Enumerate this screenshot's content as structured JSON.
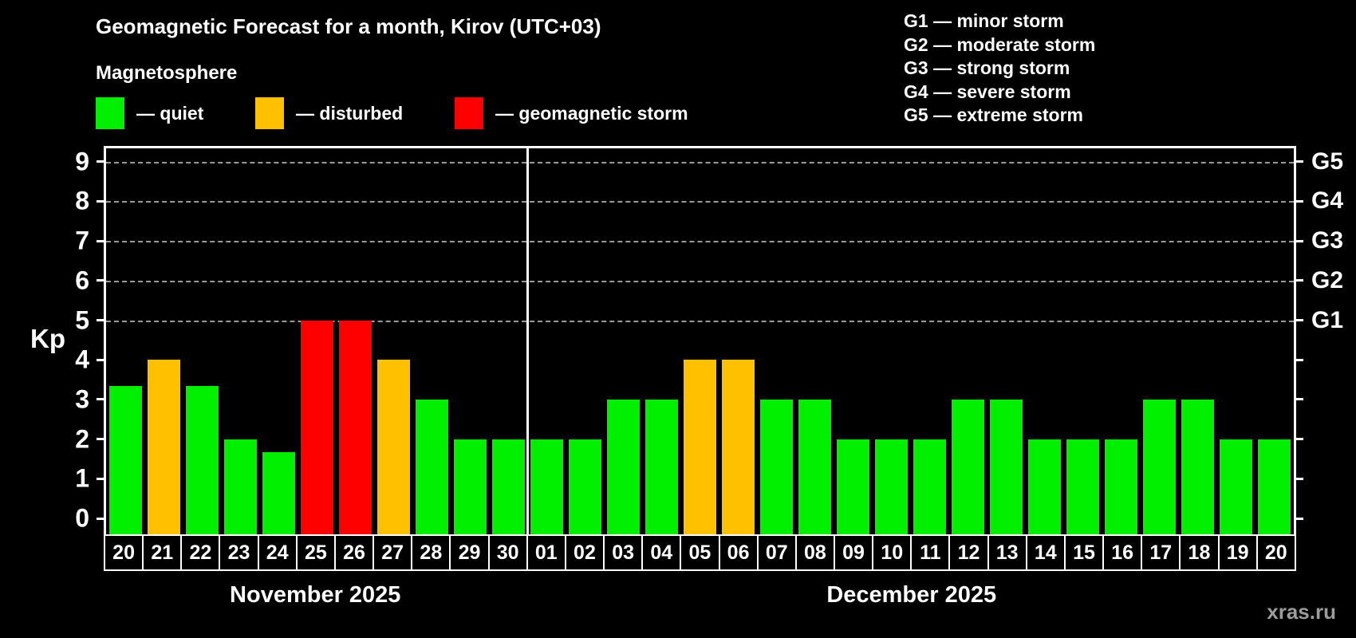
{
  "title": "Geomagnetic Forecast for a month, Kirov (UTC+03)",
  "subtitle": "Magnetosphere",
  "watermark": "xras.ru",
  "kp_legend": [
    {
      "status": "quiet",
      "label": "— quiet",
      "color": "#00f000"
    },
    {
      "status": "disturbed",
      "label": "— disturbed",
      "color": "#ffc000"
    },
    {
      "status": "storm",
      "label": "— geomagnetic storm",
      "color": "#ff0000"
    }
  ],
  "storm_scale_legend": [
    "G1 — minor storm",
    "G2 — moderate storm",
    "G3 — strong storm",
    "G4 — severe storm",
    "G5 — extreme storm"
  ],
  "chart_data": {
    "type": "bar",
    "title": "Geomagnetic Forecast for a month, Kirov (UTC+03)",
    "ylabel": "Kp",
    "ylim": [
      0,
      9
    ],
    "yticks": [
      0,
      1,
      2,
      3,
      4,
      5,
      6,
      7,
      8,
      9
    ],
    "gridlines_at_kp": [
      5,
      6,
      7,
      8,
      9
    ],
    "grid": "dashed, only at storm levels 5-9",
    "legend_position": "top",
    "right_axis": [
      {
        "label": "G1",
        "kp": 5
      },
      {
        "label": "G2",
        "kp": 6
      },
      {
        "label": "G3",
        "kp": 7
      },
      {
        "label": "G4",
        "kp": 8
      },
      {
        "label": "G5",
        "kp": 9
      }
    ],
    "status_colors": {
      "quiet": "#00f000",
      "disturbed": "#ffc000",
      "storm": "#ff0000"
    },
    "background_color": "#000000",
    "months": [
      {
        "label": "November 2025",
        "days": 11
      },
      {
        "label": "December 2025",
        "days": 20
      }
    ],
    "bars": [
      {
        "date": "20",
        "kp": 3.33,
        "status": "quiet"
      },
      {
        "date": "21",
        "kp": 4,
        "status": "disturbed"
      },
      {
        "date": "22",
        "kp": 3.33,
        "status": "quiet"
      },
      {
        "date": "23",
        "kp": 2,
        "status": "quiet"
      },
      {
        "date": "24",
        "kp": 1.67,
        "status": "quiet"
      },
      {
        "date": "25",
        "kp": 5,
        "status": "storm"
      },
      {
        "date": "26",
        "kp": 5,
        "status": "storm"
      },
      {
        "date": "27",
        "kp": 4,
        "status": "disturbed"
      },
      {
        "date": "28",
        "kp": 3,
        "status": "quiet"
      },
      {
        "date": "29",
        "kp": 2,
        "status": "quiet"
      },
      {
        "date": "30",
        "kp": 2,
        "status": "quiet"
      },
      {
        "date": "01",
        "kp": 2,
        "status": "quiet"
      },
      {
        "date": "02",
        "kp": 2,
        "status": "quiet"
      },
      {
        "date": "03",
        "kp": 3,
        "status": "quiet"
      },
      {
        "date": "04",
        "kp": 3,
        "status": "quiet"
      },
      {
        "date": "05",
        "kp": 4,
        "status": "disturbed"
      },
      {
        "date": "06",
        "kp": 4,
        "status": "disturbed"
      },
      {
        "date": "07",
        "kp": 3,
        "status": "quiet"
      },
      {
        "date": "08",
        "kp": 3,
        "status": "quiet"
      },
      {
        "date": "09",
        "kp": 2,
        "status": "quiet"
      },
      {
        "date": "10",
        "kp": 2,
        "status": "quiet"
      },
      {
        "date": "11",
        "kp": 2,
        "status": "quiet"
      },
      {
        "date": "12",
        "kp": 3,
        "status": "quiet"
      },
      {
        "date": "13",
        "kp": 3,
        "status": "quiet"
      },
      {
        "date": "14",
        "kp": 2,
        "status": "quiet"
      },
      {
        "date": "15",
        "kp": 2,
        "status": "quiet"
      },
      {
        "date": "16",
        "kp": 2,
        "status": "quiet"
      },
      {
        "date": "17",
        "kp": 3,
        "status": "quiet"
      },
      {
        "date": "18",
        "kp": 3,
        "status": "quiet"
      },
      {
        "date": "19",
        "kp": 2,
        "status": "quiet"
      },
      {
        "date": "20",
        "kp": 2,
        "status": "quiet"
      }
    ]
  }
}
